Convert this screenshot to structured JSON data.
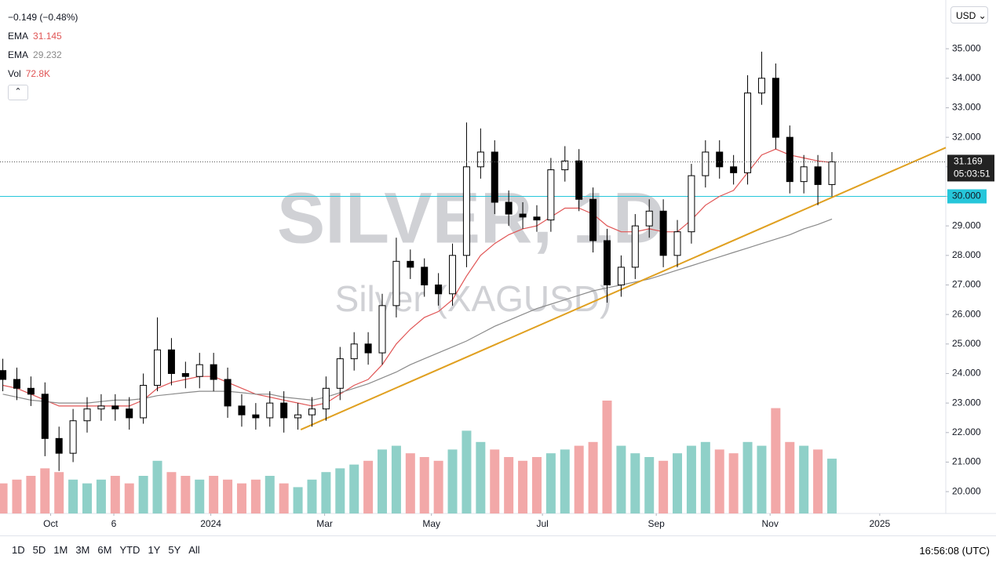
{
  "header": {
    "change": "−0.149 (−0.48%)",
    "currency": "USD"
  },
  "chart_data": {
    "type": "candlestick",
    "watermark_title": "SILVER, 1D",
    "watermark_subtitle": "Silver (XAGUSD)",
    "open": [
      24.1,
      23.8,
      23.5,
      23.3,
      21.8,
      21.3,
      22.4,
      22.8,
      22.9,
      22.8,
      22.5,
      23.6,
      24.8,
      24.0,
      23.9,
      24.3,
      23.8,
      22.9,
      22.6,
      22.5,
      23.0,
      22.5,
      22.6,
      22.8,
      23.5,
      24.5,
      25.0,
      24.7,
      26.3,
      27.8,
      27.6,
      27.0,
      26.7,
      28.0,
      31.0,
      31.5,
      29.8,
      29.4,
      29.3,
      29.2,
      30.9,
      31.2,
      29.9,
      28.5,
      27.0,
      27.6,
      29.0,
      29.5,
      28.0,
      28.8,
      30.7,
      31.5,
      31.0,
      30.8,
      33.5,
      34.0,
      32.0,
      30.5,
      31.0,
      30.4
    ],
    "high": [
      24.5,
      24.2,
      23.9,
      23.7,
      22.2,
      22.8,
      23.2,
      23.3,
      23.3,
      23.2,
      24.0,
      25.9,
      25.2,
      24.4,
      24.7,
      24.7,
      24.2,
      23.3,
      23.0,
      23.4,
      23.4,
      23.0,
      23.2,
      23.9,
      24.9,
      25.4,
      25.4,
      26.7,
      28.6,
      28.2,
      27.9,
      27.4,
      28.4,
      32.5,
      32.3,
      31.9,
      30.2,
      29.8,
      29.7,
      31.3,
      31.7,
      31.6,
      30.3,
      28.9,
      28.0,
      29.4,
      29.9,
      29.9,
      29.2,
      31.1,
      31.9,
      31.9,
      31.4,
      34.1,
      34.9,
      34.5,
      32.4,
      31.4,
      31.4,
      31.5
    ],
    "low": [
      23.4,
      23.1,
      22.9,
      21.2,
      20.7,
      21.0,
      22.0,
      22.4,
      22.4,
      22.1,
      22.3,
      23.4,
      23.6,
      23.5,
      23.5,
      23.4,
      22.5,
      22.2,
      22.1,
      22.2,
      22.0,
      22.1,
      22.2,
      22.4,
      23.1,
      24.1,
      24.3,
      24.3,
      25.9,
      27.2,
      26.6,
      26.3,
      26.3,
      27.6,
      30.6,
      29.4,
      29.0,
      28.9,
      28.8,
      28.8,
      30.5,
      29.5,
      28.1,
      26.4,
      26.6,
      27.2,
      28.6,
      27.6,
      27.6,
      28.4,
      30.3,
      30.6,
      30.4,
      30.4,
      33.1,
      31.6,
      30.1,
      30.1,
      29.7,
      30.0
    ],
    "close": [
      23.8,
      23.5,
      23.3,
      21.8,
      21.3,
      22.4,
      22.8,
      22.9,
      22.8,
      22.5,
      23.6,
      24.8,
      24.0,
      23.9,
      24.3,
      23.8,
      22.9,
      22.6,
      22.5,
      23.0,
      22.5,
      22.6,
      22.8,
      23.5,
      24.5,
      25.0,
      24.7,
      26.3,
      27.8,
      27.6,
      27.0,
      26.7,
      28.0,
      31.0,
      31.5,
      29.8,
      29.4,
      29.3,
      29.2,
      30.9,
      31.2,
      29.9,
      28.5,
      27.0,
      27.6,
      29.0,
      29.5,
      28.0,
      28.8,
      30.7,
      31.5,
      31.0,
      30.8,
      33.5,
      34.0,
      32.0,
      30.5,
      31.0,
      30.4,
      31.169
    ],
    "volume_name": "Vol",
    "volume_label": "72.8K",
    "volume": [
      40,
      45,
      50,
      60,
      55,
      45,
      40,
      45,
      50,
      40,
      50,
      70,
      55,
      50,
      45,
      50,
      45,
      40,
      45,
      50,
      40,
      35,
      45,
      55,
      60,
      65,
      70,
      85,
      90,
      80,
      75,
      70,
      85,
      110,
      95,
      85,
      75,
      70,
      75,
      80,
      85,
      90,
      95,
      150,
      90,
      80,
      75,
      70,
      80,
      90,
      95,
      85,
      80,
      95,
      90,
      140,
      95,
      90,
      85,
      72.8
    ],
    "candle_colors": {
      "up": "#ffffff",
      "down": "#000000",
      "volume_up": "#8fd0c8",
      "volume_down": "#f2a8a8"
    },
    "series": [
      {
        "name": "EMA",
        "value_label": "31.145",
        "color": "#e05555",
        "values": [
          23.6,
          23.5,
          23.3,
          23.1,
          22.9,
          22.9,
          22.9,
          22.9,
          22.9,
          22.9,
          23.1,
          23.5,
          23.7,
          23.8,
          23.9,
          23.9,
          23.7,
          23.5,
          23.3,
          23.2,
          23.1,
          23.0,
          22.9,
          23.0,
          23.3,
          23.6,
          23.8,
          24.3,
          25.0,
          25.5,
          25.9,
          26.1,
          26.5,
          27.3,
          28.0,
          28.4,
          28.7,
          28.9,
          29.0,
          29.3,
          29.6,
          29.6,
          29.4,
          29.0,
          28.8,
          28.8,
          28.9,
          28.8,
          28.8,
          29.2,
          29.7,
          30.0,
          30.2,
          30.8,
          31.4,
          31.6,
          31.4,
          31.3,
          31.2,
          31.145
        ]
      },
      {
        "name": "EMA",
        "value_label": "29.232",
        "color": "#8a8a8a",
        "values": [
          23.3,
          23.2,
          23.1,
          23.05,
          23.0,
          23.0,
          23.0,
          23.05,
          23.1,
          23.1,
          23.15,
          23.25,
          23.3,
          23.35,
          23.4,
          23.4,
          23.4,
          23.35,
          23.3,
          23.3,
          23.2,
          23.15,
          23.1,
          23.2,
          23.35,
          23.5,
          23.65,
          23.85,
          24.05,
          24.3,
          24.5,
          24.7,
          24.9,
          25.1,
          25.35,
          25.6,
          25.8,
          26.0,
          26.2,
          26.35,
          26.5,
          26.65,
          26.8,
          26.9,
          27.0,
          27.1,
          27.2,
          27.35,
          27.5,
          27.65,
          27.8,
          27.95,
          28.1,
          28.25,
          28.4,
          28.55,
          28.7,
          28.9,
          29.05,
          29.232
        ]
      }
    ],
    "trendline": {
      "x": [
        21.2,
        67.1
      ],
      "y": [
        22.1,
        31.65
      ],
      "color": "#e0a020"
    },
    "price_lines": [
      {
        "value": 30,
        "label": "30.000",
        "color": "#26c6da"
      }
    ],
    "last_price": {
      "value": 31.169,
      "label": "31.169",
      "countdown": "05:03:51"
    },
    "xlim": [
      -0.2,
      67.1
    ],
    "ylim": [
      19.26,
      36.65
    ],
    "xticks": [
      {
        "value": 3.4,
        "label": "Oct"
      },
      {
        "value": 7.9,
        "label": "6"
      },
      {
        "value": 14.8,
        "label": "2024"
      },
      {
        "value": 22.9,
        "label": "Mar"
      },
      {
        "value": 30.5,
        "label": "May"
      },
      {
        "value": 38.4,
        "label": "Jul"
      },
      {
        "value": 46.5,
        "label": "Sep"
      },
      {
        "value": 54.6,
        "label": "Nov"
      },
      {
        "value": 62.4,
        "label": "2025"
      }
    ],
    "yticks": [
      {
        "value": 20,
        "label": "20.000"
      },
      {
        "value": 21,
        "label": "21.000"
      },
      {
        "value": 22,
        "label": "22.000"
      },
      {
        "value": 23,
        "label": "23.000"
      },
      {
        "value": 24,
        "label": "24.000"
      },
      {
        "value": 25,
        "label": "25.000"
      },
      {
        "value": 26,
        "label": "26.000"
      },
      {
        "value": 27,
        "label": "27.000"
      },
      {
        "value": 28,
        "label": "28.000"
      },
      {
        "value": 29,
        "label": "29.000"
      },
      {
        "value": 30,
        "label": "30.000"
      },
      {
        "value": 31,
        "label": "31.000"
      },
      {
        "value": 32,
        "label": "32.000"
      },
      {
        "value": 33,
        "label": "33.000"
      },
      {
        "value": 34,
        "label": "34.000"
      },
      {
        "value": 35,
        "label": "35.000"
      }
    ],
    "grid": false
  },
  "toolbar": {
    "ranges": [
      "1D",
      "5D",
      "1M",
      "3M",
      "6M",
      "YTD",
      "1Y",
      "5Y",
      "All"
    ],
    "clock": "16:56:08 (UTC)"
  }
}
